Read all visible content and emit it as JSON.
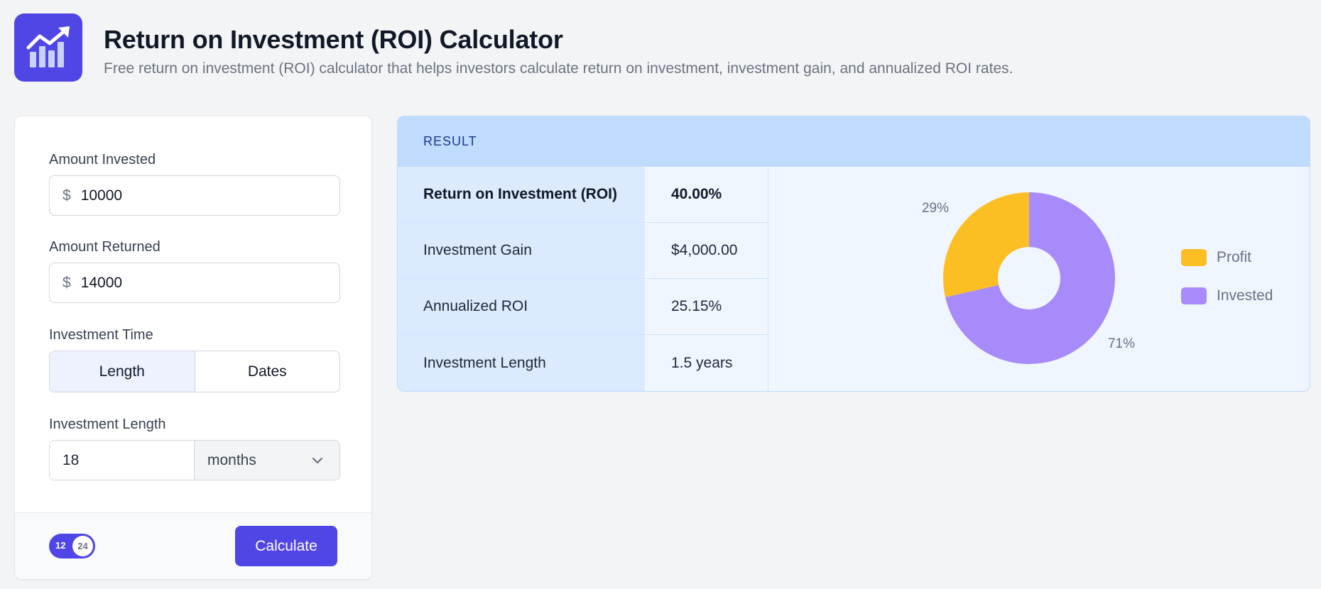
{
  "header": {
    "title": "Return on Investment (ROI) Calculator",
    "subtitle": "Free return on investment (ROI) calculator that helps investors calculate return on investment, investment gain, and annualized ROI rates.",
    "logo_icon": "chart-up-icon"
  },
  "form": {
    "amount_invested": {
      "label": "Amount Invested",
      "currency": "$",
      "value": "10000"
    },
    "amount_returned": {
      "label": "Amount Returned",
      "currency": "$",
      "value": "14000"
    },
    "investment_time": {
      "label": "Investment Time",
      "options": [
        "Length",
        "Dates"
      ],
      "selected": "Length"
    },
    "investment_length": {
      "label": "Investment Length",
      "value": "18",
      "unit": "months",
      "unit_icon": "chevron-down-icon"
    },
    "toggle": {
      "left": "12",
      "right": "24"
    },
    "calculate_label": "Calculate"
  },
  "result": {
    "header": "RESULT",
    "rows": [
      {
        "label": "Return on Investment (ROI)",
        "value": "40.00%"
      },
      {
        "label": "Investment Gain",
        "value": "$4,000.00"
      },
      {
        "label": "Annualized ROI",
        "value": "25.15%"
      },
      {
        "label": "Investment Length",
        "value": "1.5 years"
      }
    ]
  },
  "chart_data": {
    "type": "pie",
    "donut": true,
    "categories": [
      "Profit",
      "Invested"
    ],
    "values": [
      4000,
      10000
    ],
    "percent_labels": [
      "29%",
      "71%"
    ],
    "colors": [
      "#fbbf24",
      "#a78bfa"
    ],
    "legend_position": "right"
  }
}
